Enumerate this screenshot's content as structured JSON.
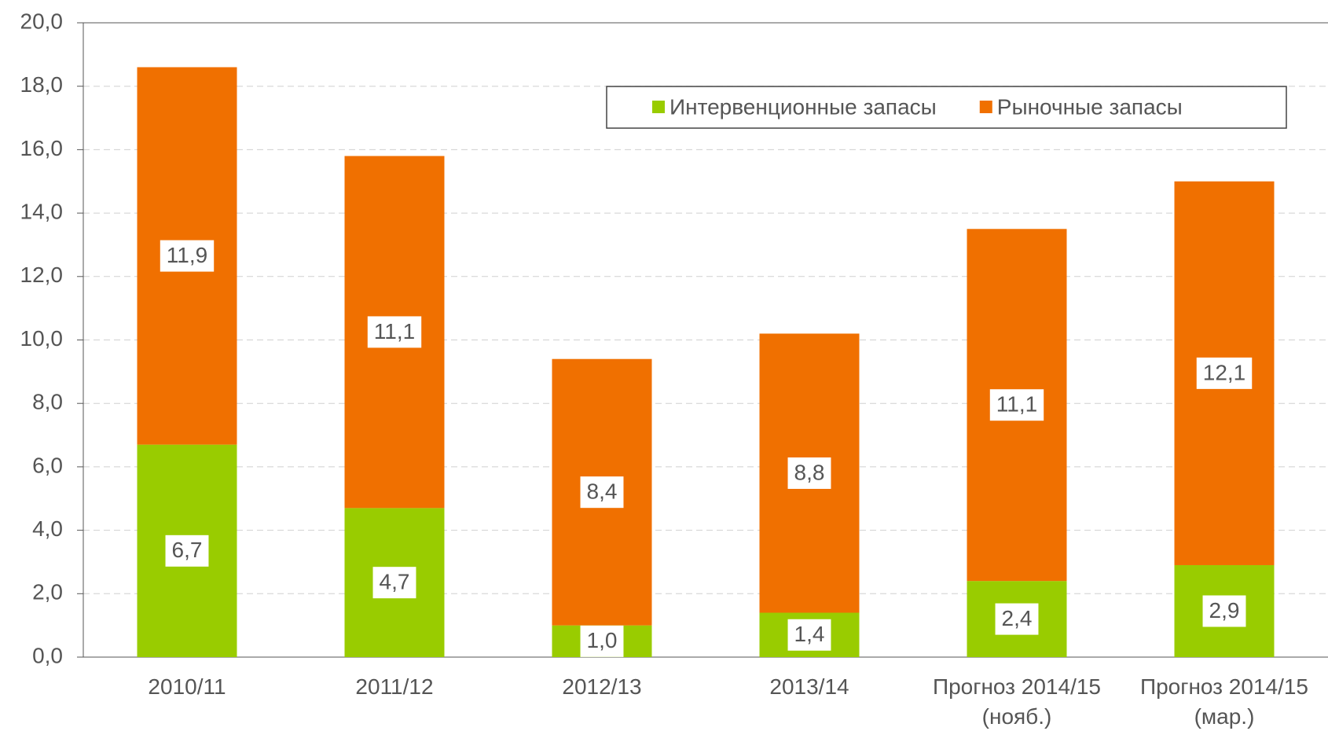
{
  "chart_data": {
    "type": "stacked_bar",
    "categories": [
      "2010/11",
      "2011/12",
      "2012/13",
      "2013/14",
      "Прогноз 2014/15\n(нояб.)",
      "Прогноз 2014/15\n(мар.)"
    ],
    "series": [
      {
        "name": "Интервенционные запасы",
        "color": "#99cc00",
        "values": [
          6.7,
          4.7,
          1.0,
          1.4,
          2.4,
          2.9
        ],
        "value_labels": [
          "6,7",
          "4,7",
          "1,0",
          "1,4",
          "2,4",
          "2,9"
        ]
      },
      {
        "name": "Рыночные запасы",
        "color": "#f07000",
        "values": [
          11.9,
          11.1,
          8.4,
          8.8,
          11.1,
          12.1
        ],
        "value_labels": [
          "11,9",
          "11,1",
          "8,4",
          "8,8",
          "11,1",
          "12,1"
        ]
      }
    ],
    "ylim": [
      0,
      20
    ],
    "yticks": [
      {
        "value": 0,
        "label": "0,0"
      },
      {
        "value": 2,
        "label": "2,0"
      },
      {
        "value": 4,
        "label": "4,0"
      },
      {
        "value": 6,
        "label": "6,0"
      },
      {
        "value": 8,
        "label": "8,0"
      },
      {
        "value": 10,
        "label": "10,0"
      },
      {
        "value": 12,
        "label": "12,0"
      },
      {
        "value": 14,
        "label": "14,0"
      },
      {
        "value": 16,
        "label": "16,0"
      },
      {
        "value": 18,
        "label": "18,0"
      },
      {
        "value": 20,
        "label": "20,0"
      }
    ],
    "grid": true,
    "legend": "top-right"
  }
}
